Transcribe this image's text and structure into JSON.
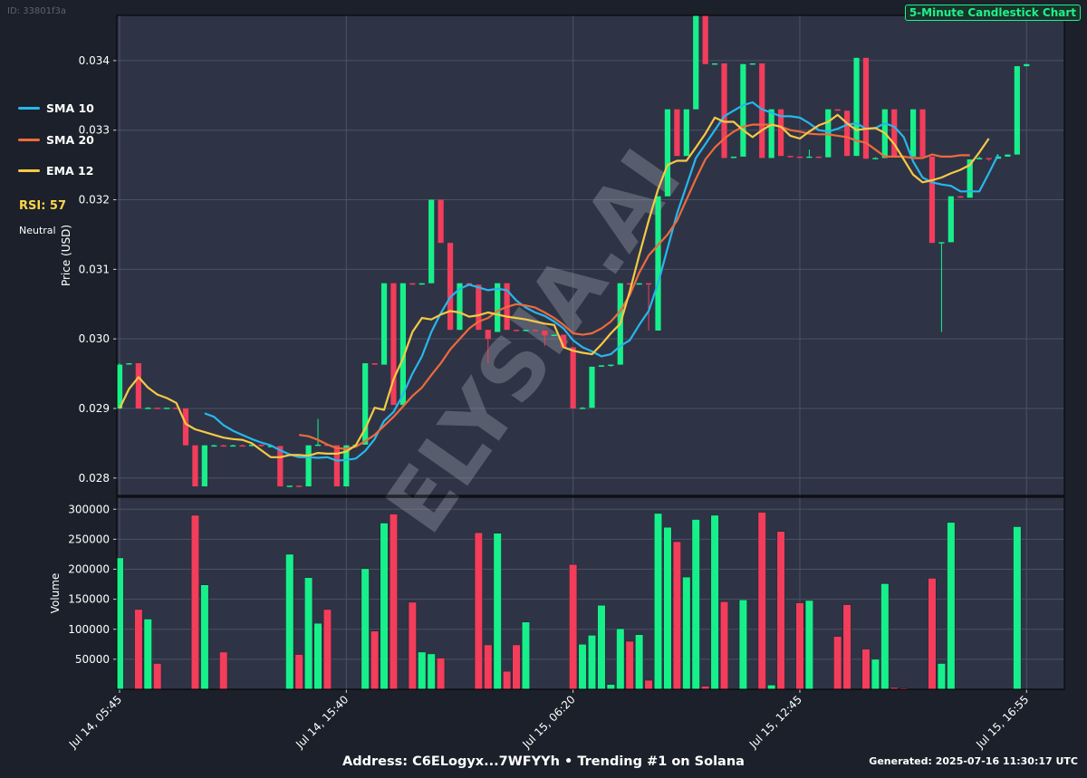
{
  "header": {
    "id_text": "ID: 33801f3a",
    "chart_title": "5-Minute Candlestick Chart"
  },
  "legend": {
    "items": [
      {
        "label": "SMA 10",
        "color": "#27b7ec"
      },
      {
        "label": "SMA 20",
        "color": "#ee6a3c"
      },
      {
        "label": "EMA 12",
        "color": "#f6c945"
      }
    ]
  },
  "rsi": {
    "label": "RSI: 57",
    "state": "Neutral",
    "color": "#ffd54a"
  },
  "watermark": "ELYSIA.AI",
  "footer": {
    "address_line": "Address: C6ELogyx...7WFYYh • Trending #1 on Solana",
    "generated": "Generated: 2025-07-16 11:30:17 UTC"
  },
  "colors": {
    "up": "#17f08a",
    "down": "#f23d5b",
    "panel": "#2e3446",
    "background": "#1b202a",
    "grid": "#4b5264"
  },
  "chart_data": {
    "type": "candlestick",
    "price_axis": {
      "label": "Price (USD)",
      "ylim": [
        0.02775,
        0.03465
      ],
      "ticks": [
        0.028,
        0.029,
        0.03,
        0.031,
        0.032,
        0.033,
        0.034
      ],
      "tick_labels": [
        "0.028",
        "0.029",
        "0.030",
        "0.031",
        "0.032",
        "0.033",
        "0.034"
      ]
    },
    "volume_axis": {
      "label": "Volume",
      "ylim": [
        0,
        320000
      ],
      "ticks": [
        50000,
        100000,
        150000,
        200000,
        250000,
        300000
      ],
      "tick_labels": [
        "50000",
        "100000",
        "150000",
        "200000",
        "250000",
        "300000"
      ]
    },
    "x_ticks": [
      {
        "index": 0,
        "label": "Jul 14, 05:45"
      },
      {
        "index": 24,
        "label": "Jul 14, 15:40"
      },
      {
        "index": 48,
        "label": "Jul 15, 06:20"
      },
      {
        "index": 72,
        "label": "Jul 15, 12:45"
      },
      {
        "index": 96,
        "label": "Jul 15, 16:55"
      }
    ],
    "grid": true,
    "legend_position": "left-outside",
    "candles": [
      {
        "o": 0.029,
        "h": 0.02965,
        "l": 0.029,
        "c": 0.02963,
        "v": 219000
      },
      {
        "o": 0.02965,
        "h": 0.02965,
        "l": 0.02963,
        "c": 0.02965,
        "v": 0
      },
      {
        "o": 0.02965,
        "h": 0.02965,
        "l": 0.029,
        "c": 0.029,
        "v": 133000
      },
      {
        "o": 0.029,
        "h": 0.02902,
        "l": 0.029,
        "c": 0.02901,
        "v": 117000
      },
      {
        "o": 0.02901,
        "h": 0.02901,
        "l": 0.029,
        "c": 0.029,
        "v": 43000
      },
      {
        "o": 0.029,
        "h": 0.02901,
        "l": 0.029,
        "c": 0.02901,
        "v": 0
      },
      {
        "o": 0.02901,
        "h": 0.02901,
        "l": 0.029,
        "c": 0.029,
        "v": 0
      },
      {
        "o": 0.029,
        "h": 0.029,
        "l": 0.02847,
        "c": 0.02847,
        "v": 0
      },
      {
        "o": 0.02847,
        "h": 0.02847,
        "l": 0.02788,
        "c": 0.02788,
        "v": 290000
      },
      {
        "o": 0.02788,
        "h": 0.02847,
        "l": 0.02788,
        "c": 0.02847,
        "v": 174000
      },
      {
        "o": 0.02847,
        "h": 0.02848,
        "l": 0.02846,
        "c": 0.02847,
        "v": 0
      },
      {
        "o": 0.02847,
        "h": 0.02848,
        "l": 0.02846,
        "c": 0.02846,
        "v": 62000
      },
      {
        "o": 0.02846,
        "h": 0.02848,
        "l": 0.02846,
        "c": 0.02847,
        "v": 0
      },
      {
        "o": 0.02847,
        "h": 0.02848,
        "l": 0.02846,
        "c": 0.02846,
        "v": 0
      },
      {
        "o": 0.02846,
        "h": 0.02848,
        "l": 0.02845,
        "c": 0.02848,
        "v": 0
      },
      {
        "o": 0.02848,
        "h": 0.02848,
        "l": 0.02845,
        "c": 0.02846,
        "v": 0
      },
      {
        "o": 0.02846,
        "h": 0.02847,
        "l": 0.02846,
        "c": 0.02846,
        "v": 0
      },
      {
        "o": 0.02846,
        "h": 0.02846,
        "l": 0.02788,
        "c": 0.02788,
        "v": 0
      },
      {
        "o": 0.02788,
        "h": 0.02789,
        "l": 0.02787,
        "c": 0.02789,
        "v": 225000
      },
      {
        "o": 0.02789,
        "h": 0.02789,
        "l": 0.02787,
        "c": 0.02788,
        "v": 58000
      },
      {
        "o": 0.02788,
        "h": 0.02847,
        "l": 0.02788,
        "c": 0.02847,
        "v": 186000
      },
      {
        "o": 0.02847,
        "h": 0.02885,
        "l": 0.02847,
        "c": 0.02848,
        "v": 110000
      },
      {
        "o": 0.02848,
        "h": 0.02848,
        "l": 0.02846,
        "c": 0.02847,
        "v": 133000
      },
      {
        "o": 0.02847,
        "h": 0.02847,
        "l": 0.02788,
        "c": 0.02788,
        "v": 0
      },
      {
        "o": 0.02788,
        "h": 0.02847,
        "l": 0.02788,
        "c": 0.02847,
        "v": 0
      },
      {
        "o": 0.02847,
        "h": 0.02848,
        "l": 0.02846,
        "c": 0.02848,
        "v": 0
      },
      {
        "o": 0.02848,
        "h": 0.02965,
        "l": 0.02848,
        "c": 0.02965,
        "v": 201000
      },
      {
        "o": 0.02965,
        "h": 0.02965,
        "l": 0.02963,
        "c": 0.02963,
        "v": 97000
      },
      {
        "o": 0.02963,
        "h": 0.0308,
        "l": 0.02963,
        "c": 0.0308,
        "v": 277000
      },
      {
        "o": 0.0308,
        "h": 0.0308,
        "l": 0.02905,
        "c": 0.02905,
        "v": 292000
      },
      {
        "o": 0.02905,
        "h": 0.0308,
        "l": 0.02905,
        "c": 0.0308,
        "v": 0
      },
      {
        "o": 0.0308,
        "h": 0.0308,
        "l": 0.03078,
        "c": 0.03078,
        "v": 145000
      },
      {
        "o": 0.03078,
        "h": 0.0308,
        "l": 0.03078,
        "c": 0.0308,
        "v": 62000
      },
      {
        "o": 0.0308,
        "h": 0.032,
        "l": 0.0308,
        "c": 0.032,
        "v": 59000
      },
      {
        "o": 0.032,
        "h": 0.032,
        "l": 0.03138,
        "c": 0.03138,
        "v": 52000
      },
      {
        "o": 0.03138,
        "h": 0.03138,
        "l": 0.03013,
        "c": 0.03013,
        "v": 0
      },
      {
        "o": 0.03013,
        "h": 0.0308,
        "l": 0.03013,
        "c": 0.0308,
        "v": 0
      },
      {
        "o": 0.0308,
        "h": 0.0308,
        "l": 0.03078,
        "c": 0.03078,
        "v": 0
      },
      {
        "o": 0.03078,
        "h": 0.03078,
        "l": 0.03013,
        "c": 0.03013,
        "v": 261000
      },
      {
        "o": 0.03013,
        "h": 0.03013,
        "l": 0.02965,
        "c": 0.03,
        "v": 74000
      },
      {
        "o": 0.0301,
        "h": 0.0308,
        "l": 0.0301,
        "c": 0.0308,
        "v": 260000
      },
      {
        "o": 0.0308,
        "h": 0.0308,
        "l": 0.03013,
        "c": 0.03013,
        "v": 30000
      },
      {
        "o": 0.03013,
        "h": 0.03013,
        "l": 0.03011,
        "c": 0.03012,
        "v": 74000
      },
      {
        "o": 0.03012,
        "h": 0.03013,
        "l": 0.03011,
        "c": 0.03013,
        "v": 112000
      },
      {
        "o": 0.03013,
        "h": 0.03013,
        "l": 0.03011,
        "c": 0.03012,
        "v": 0
      },
      {
        "o": 0.03012,
        "h": 0.03012,
        "l": 0.0299,
        "c": 0.03005,
        "v": 0
      },
      {
        "o": 0.03005,
        "h": 0.03006,
        "l": 0.03004,
        "c": 0.03006,
        "v": 0
      },
      {
        "o": 0.03006,
        "h": 0.03006,
        "l": 0.02988,
        "c": 0.02988,
        "v": 0
      },
      {
        "o": 0.02988,
        "h": 0.02988,
        "l": 0.029,
        "c": 0.029,
        "v": 208000
      },
      {
        "o": 0.029,
        "h": 0.02902,
        "l": 0.029,
        "c": 0.02901,
        "v": 75000
      },
      {
        "o": 0.02901,
        "h": 0.0296,
        "l": 0.02901,
        "c": 0.0296,
        "v": 90000
      },
      {
        "o": 0.0296,
        "h": 0.02962,
        "l": 0.0296,
        "c": 0.02962,
        "v": 140000
      },
      {
        "o": 0.02962,
        "h": 0.02963,
        "l": 0.0296,
        "c": 0.02963,
        "v": 8000
      },
      {
        "o": 0.02963,
        "h": 0.0308,
        "l": 0.02963,
        "c": 0.0308,
        "v": 101000
      },
      {
        "o": 0.0308,
        "h": 0.0308,
        "l": 0.03078,
        "c": 0.03078,
        "v": 80000
      },
      {
        "o": 0.03078,
        "h": 0.0308,
        "l": 0.03078,
        "c": 0.0308,
        "v": 91000
      },
      {
        "o": 0.0308,
        "h": 0.0308,
        "l": 0.03012,
        "c": 0.03079,
        "v": 15000
      },
      {
        "o": 0.03012,
        "h": 0.03205,
        "l": 0.03012,
        "c": 0.03205,
        "v": 293000
      },
      {
        "o": 0.03205,
        "h": 0.0333,
        "l": 0.03205,
        "c": 0.0333,
        "v": 270000
      },
      {
        "o": 0.0333,
        "h": 0.0333,
        "l": 0.03263,
        "c": 0.03263,
        "v": 246000
      },
      {
        "o": 0.03263,
        "h": 0.0333,
        "l": 0.03263,
        "c": 0.0333,
        "v": 187000
      },
      {
        "o": 0.0333,
        "h": 0.03465,
        "l": 0.0333,
        "c": 0.03465,
        "v": 283000
      },
      {
        "o": 0.03465,
        "h": 0.03465,
        "l": 0.03395,
        "c": 0.03395,
        "v": 5000
      },
      {
        "o": 0.03395,
        "h": 0.03396,
        "l": 0.03394,
        "c": 0.03396,
        "v": 290000
      },
      {
        "o": 0.03396,
        "h": 0.03396,
        "l": 0.0326,
        "c": 0.0326,
        "v": 146000
      },
      {
        "o": 0.0326,
        "h": 0.03262,
        "l": 0.0326,
        "c": 0.03262,
        "v": 0
      },
      {
        "o": 0.03262,
        "h": 0.03395,
        "l": 0.03262,
        "c": 0.03395,
        "v": 149000
      },
      {
        "o": 0.03395,
        "h": 0.03396,
        "l": 0.03394,
        "c": 0.03396,
        "v": 0
      },
      {
        "o": 0.03396,
        "h": 0.03396,
        "l": 0.0326,
        "c": 0.0326,
        "v": 295000
      },
      {
        "o": 0.0326,
        "h": 0.0333,
        "l": 0.0326,
        "c": 0.0333,
        "v": 7000
      },
      {
        "o": 0.0333,
        "h": 0.0333,
        "l": 0.03263,
        "c": 0.03263,
        "v": 263000
      },
      {
        "o": 0.03263,
        "h": 0.03263,
        "l": 0.03261,
        "c": 0.03262,
        "v": 0
      },
      {
        "o": 0.03262,
        "h": 0.03262,
        "l": 0.03261,
        "c": 0.03261,
        "v": 144000
      },
      {
        "o": 0.03261,
        "h": 0.03272,
        "l": 0.03261,
        "c": 0.03262,
        "v": 148000
      },
      {
        "o": 0.03262,
        "h": 0.03262,
        "l": 0.03261,
        "c": 0.03261,
        "v": 0
      },
      {
        "o": 0.03261,
        "h": 0.0333,
        "l": 0.03261,
        "c": 0.0333,
        "v": 0
      },
      {
        "o": 0.0333,
        "h": 0.0333,
        "l": 0.03328,
        "c": 0.03328,
        "v": 88000
      },
      {
        "o": 0.03328,
        "h": 0.03328,
        "l": 0.03263,
        "c": 0.03263,
        "v": 141000
      },
      {
        "o": 0.03263,
        "h": 0.03404,
        "l": 0.03263,
        "c": 0.03404,
        "v": 0
      },
      {
        "o": 0.03404,
        "h": 0.03404,
        "l": 0.03259,
        "c": 0.03259,
        "v": 67000
      },
      {
        "o": 0.03259,
        "h": 0.03261,
        "l": 0.03259,
        "c": 0.0326,
        "v": 50000
      },
      {
        "o": 0.0326,
        "h": 0.0333,
        "l": 0.0326,
        "c": 0.0333,
        "v": 176000
      },
      {
        "o": 0.0333,
        "h": 0.0333,
        "l": 0.03263,
        "c": 0.03263,
        "v": 3000
      },
      {
        "o": 0.03263,
        "h": 0.03263,
        "l": 0.03261,
        "c": 0.03262,
        "v": 2000
      },
      {
        "o": 0.03262,
        "h": 0.0333,
        "l": 0.03262,
        "c": 0.0333,
        "v": 0
      },
      {
        "o": 0.0333,
        "h": 0.0333,
        "l": 0.03262,
        "c": 0.03262,
        "v": 0
      },
      {
        "o": 0.03262,
        "h": 0.03262,
        "l": 0.03138,
        "c": 0.03138,
        "v": 185000
      },
      {
        "o": 0.03138,
        "h": 0.03138,
        "l": 0.0301,
        "c": 0.03139,
        "v": 43000
      },
      {
        "o": 0.03139,
        "h": 0.03205,
        "l": 0.03139,
        "c": 0.03205,
        "v": 278000
      },
      {
        "o": 0.03205,
        "h": 0.03205,
        "l": 0.03203,
        "c": 0.03203,
        "v": 0
      },
      {
        "o": 0.03203,
        "h": 0.03258,
        "l": 0.03203,
        "c": 0.03258,
        "v": 0
      },
      {
        "o": 0.03258,
        "h": 0.03262,
        "l": 0.03258,
        "c": 0.0326,
        "v": 0
      },
      {
        "o": 0.0326,
        "h": 0.0326,
        "l": 0.03256,
        "c": 0.03259,
        "v": 0
      },
      {
        "o": 0.03259,
        "h": 0.03262,
        "l": 0.03259,
        "c": 0.03262,
        "v": 0
      },
      {
        "o": 0.03262,
        "h": 0.03265,
        "l": 0.03262,
        "c": 0.03265,
        "v": 0
      },
      {
        "o": 0.03265,
        "h": 0.03392,
        "l": 0.03265,
        "c": 0.03392,
        "v": 271000
      },
      {
        "o": 0.03392,
        "h": 0.03395,
        "l": 0.03392,
        "c": 0.03395,
        "v": 0
      }
    ],
    "sma10": [
      null,
      null,
      null,
      null,
      null,
      null,
      null,
      null,
      null,
      0.02893,
      0.02888,
      0.02876,
      0.02868,
      0.02862,
      0.02856,
      0.02851,
      0.02847,
      0.0284,
      0.02834,
      0.0283,
      0.0283,
      0.02829,
      0.0283,
      0.02825,
      0.02826,
      0.02828,
      0.02839,
      0.02856,
      0.02882,
      0.02895,
      0.0292,
      0.0295,
      0.02975,
      0.0301,
      0.03037,
      0.0306,
      0.03072,
      0.03078,
      0.03074,
      0.0307,
      0.03072,
      0.0307,
      0.03055,
      0.03045,
      0.03038,
      0.03033,
      0.03025,
      0.03015,
      0.02998,
      0.02988,
      0.02982,
      0.02975,
      0.02978,
      0.0299,
      0.02998,
      0.0302,
      0.0304,
      0.0308,
      0.0313,
      0.0318,
      0.0322,
      0.0326,
      0.0328,
      0.033,
      0.0332,
      0.03328,
      0.03336,
      0.0334,
      0.0333,
      0.03325,
      0.0332,
      0.0332,
      0.03318,
      0.0331,
      0.033,
      0.03298,
      0.03302,
      0.03308,
      0.0331,
      0.03302,
      0.03303,
      0.0331,
      0.03305,
      0.0329,
      0.03255,
      0.03232,
      0.03225,
      0.03222,
      0.0322,
      0.03212,
      0.03212,
      0.03212,
      0.03238,
      0.03265
    ],
    "sma20": [
      null,
      null,
      null,
      null,
      null,
      null,
      null,
      null,
      null,
      null,
      null,
      null,
      null,
      null,
      null,
      null,
      null,
      null,
      null,
      0.02862,
      0.0286,
      0.02855,
      0.02848,
      0.02843,
      0.02842,
      0.02845,
      0.02853,
      0.02862,
      0.02875,
      0.02888,
      0.02903,
      0.02918,
      0.0293,
      0.02948,
      0.02965,
      0.02985,
      0.03,
      0.03015,
      0.03025,
      0.0303,
      0.0304,
      0.03046,
      0.0305,
      0.03048,
      0.03045,
      0.03038,
      0.0303,
      0.0302,
      0.03008,
      0.03006,
      0.03008,
      0.03015,
      0.03025,
      0.0304,
      0.03063,
      0.03095,
      0.0312,
      0.03135,
      0.0315,
      0.0317,
      0.032,
      0.0323,
      0.03258,
      0.03275,
      0.03288,
      0.03298,
      0.03305,
      0.03308,
      0.03308,
      0.03308,
      0.03305,
      0.033,
      0.03298,
      0.03295,
      0.03294,
      0.03294,
      0.03292,
      0.0329,
      0.03285,
      0.03282,
      0.03272,
      0.03262,
      0.03262,
      0.03262,
      0.0326,
      0.0326,
      0.03265,
      0.03262,
      0.03262,
      0.03264,
      0.03264
    ],
    "ema12": [
      0.029,
      0.02928,
      0.02945,
      0.0293,
      0.0292,
      0.02915,
      0.02908,
      0.02878,
      0.0287,
      0.02866,
      0.02862,
      0.02858,
      0.02856,
      0.02855,
      0.0285,
      0.0284,
      0.0283,
      0.0283,
      0.02833,
      0.02833,
      0.02832,
      0.02836,
      0.02835,
      0.02835,
      0.02838,
      0.02847,
      0.02871,
      0.02901,
      0.02898,
      0.02942,
      0.02972,
      0.0301,
      0.0303,
      0.03028,
      0.03035,
      0.0304,
      0.03038,
      0.03032,
      0.03034,
      0.03038,
      0.03035,
      0.03032,
      0.0303,
      0.03028,
      0.03025,
      0.03022,
      0.0302,
      0.02988,
      0.02983,
      0.0298,
      0.02978,
      0.02992,
      0.03008,
      0.03022,
      0.03068,
      0.0312,
      0.0317,
      0.03215,
      0.0325,
      0.03256,
      0.03256,
      0.03275,
      0.03295,
      0.03318,
      0.03312,
      0.03312,
      0.033,
      0.0329,
      0.033,
      0.03308,
      0.03305,
      0.03292,
      0.03288,
      0.03298,
      0.03307,
      0.03312,
      0.03322,
      0.0331,
      0.033,
      0.03302,
      0.03303,
      0.03296,
      0.0328,
      0.03258,
      0.03236,
      0.03225,
      0.03228,
      0.03232,
      0.03238,
      0.03243,
      0.0325,
      0.03268,
      0.03288
    ]
  }
}
